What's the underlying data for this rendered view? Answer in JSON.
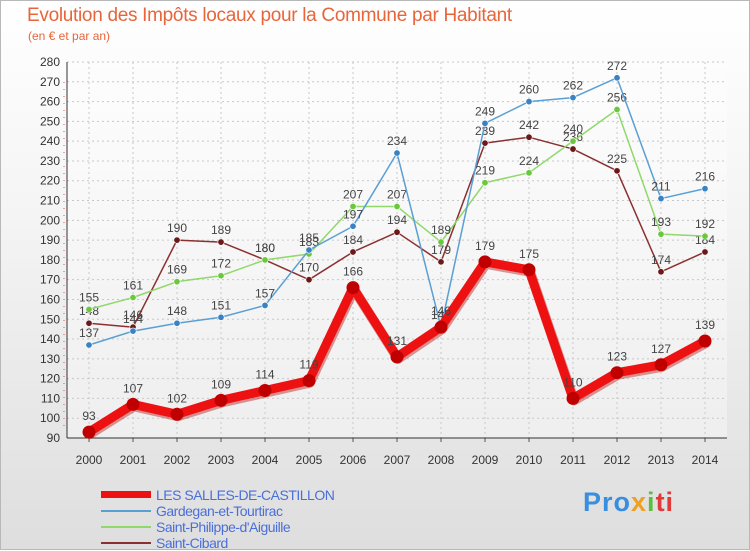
{
  "chart_data": {
    "type": "line",
    "title": "Evolution des Impôts locaux pour la Commune par Habitant",
    "subtitle": "(en € et par an)",
    "x": [
      2000,
      2001,
      2002,
      2003,
      2004,
      2005,
      2006,
      2007,
      2008,
      2009,
      2010,
      2011,
      2012,
      2013,
      2014
    ],
    "x_labels": [
      "2000",
      "2001",
      "2002",
      "2003",
      "2004",
      "2005",
      "2006",
      "2007",
      "2008",
      "2009",
      "2010",
      "2011",
      "2012",
      "2013",
      "2014"
    ],
    "ylim": [
      90,
      280
    ],
    "yticks": [
      90,
      100,
      110,
      120,
      130,
      140,
      150,
      160,
      170,
      180,
      190,
      200,
      210,
      220,
      230,
      240,
      250,
      260,
      270,
      280
    ],
    "ytick_labels": [
      "90",
      "100",
      "110",
      "120",
      "130",
      "140",
      "150",
      "160",
      "170",
      "180",
      "190",
      "200",
      "210",
      "220",
      "230",
      "240",
      "250",
      "260",
      "270",
      "280"
    ],
    "grid": true,
    "legend_position": "bottom-left",
    "series": [
      {
        "name": "LES SALLES-DE-CASTILLON",
        "color": "#ee1111",
        "marker": "#c00000",
        "bold": true,
        "values": [
          93,
          107,
          102,
          109,
          114,
          119,
          166,
          131,
          146,
          179,
          175,
          110,
          123,
          127,
          139
        ],
        "labels": [
          "93",
          "107",
          "102",
          "109",
          "114",
          "119",
          "166",
          "131",
          "146",
          "179",
          "175",
          "110",
          "123",
          "127",
          "139"
        ]
      },
      {
        "name": "Gardegan-et-Tourtirac",
        "color": "#5a9fd4",
        "marker": "#3b82c4",
        "bold": false,
        "values": [
          137,
          144,
          148,
          151,
          157,
          185,
          197,
          234,
          146,
          249,
          260,
          262,
          272,
          211,
          216
        ],
        "labels": [
          "137",
          "144",
          "148",
          "151",
          "157",
          "185",
          "197",
          "234",
          "146",
          "249",
          "260",
          "262",
          "272",
          "211",
          "216"
        ]
      },
      {
        "name": "Saint-Philippe-d'Aiguille",
        "color": "#8fd86a",
        "marker": "#6ac83e",
        "bold": false,
        "values": [
          155,
          161,
          169,
          172,
          180,
          183,
          207,
          207,
          189,
          219,
          224,
          240,
          256,
          193,
          192
        ],
        "labels": [
          "155",
          "161",
          "169",
          "172",
          "180",
          "183",
          "207",
          "207",
          "189",
          "219",
          "224",
          "240",
          "256",
          "193",
          "192"
        ]
      },
      {
        "name": "Saint-Cibard",
        "color": "#8b3030",
        "marker": "#6b1818",
        "bold": false,
        "values": [
          148,
          146,
          190,
          189,
          180,
          170,
          184,
          194,
          179,
          239,
          242,
          236,
          225,
          174,
          184
        ],
        "labels": [
          "148",
          "146",
          "190",
          "189",
          "180",
          "170",
          "184",
          "194",
          "179",
          "239",
          "242",
          "236",
          "225",
          "174",
          "184"
        ]
      }
    ]
  },
  "logo": {
    "p1": "Pro",
    "p2": "x",
    "p3": "i",
    "p4": "ti"
  }
}
